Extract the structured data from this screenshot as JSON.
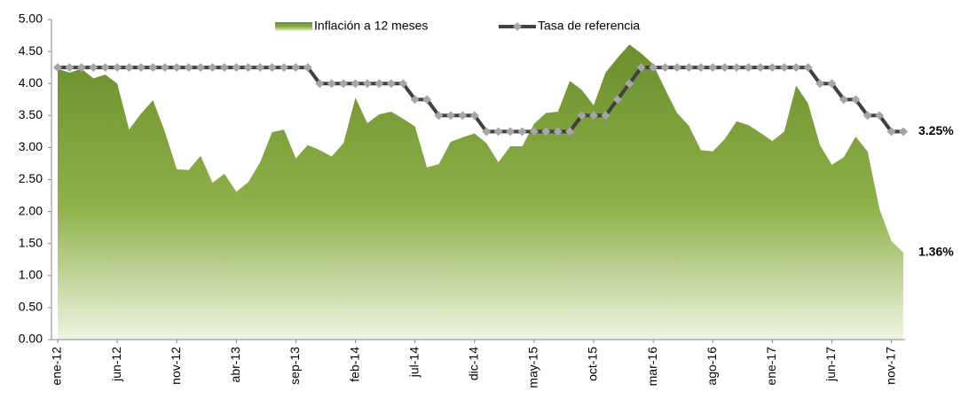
{
  "chart_data": {
    "type": "area-line",
    "categories": [
      "ene-12",
      null,
      null,
      null,
      null,
      "jun-12",
      null,
      null,
      null,
      null,
      "nov-12",
      null,
      null,
      null,
      null,
      "abr-13",
      null,
      null,
      null,
      null,
      "sep-13",
      null,
      null,
      null,
      null,
      "feb-14",
      null,
      null,
      null,
      null,
      "jul-14",
      null,
      null,
      null,
      null,
      "dic-14",
      null,
      null,
      null,
      null,
      "may-15",
      null,
      null,
      null,
      null,
      "oct-15",
      null,
      null,
      null,
      null,
      "mar-16",
      null,
      null,
      null,
      null,
      "ago-16",
      null,
      null,
      null,
      null,
      "ene-17",
      null,
      null,
      null,
      null,
      "jun-17",
      null,
      null,
      null,
      null,
      "nov-17",
      null
    ],
    "series": [
      {
        "name": "Inflación a 12 meses",
        "color": "#7a9e3a",
        "kind": "area",
        "values": [
          4.23,
          4.17,
          4.23,
          4.08,
          4.14,
          4.0,
          3.28,
          3.53,
          3.74,
          3.25,
          2.66,
          2.65,
          2.87,
          2.45,
          2.59,
          2.31,
          2.46,
          2.77,
          3.24,
          3.28,
          2.83,
          3.04,
          2.96,
          2.86,
          3.07,
          3.78,
          3.38,
          3.52,
          3.56,
          3.45,
          3.33,
          2.69,
          2.74,
          3.09,
          3.16,
          3.22,
          3.07,
          2.77,
          3.02,
          3.02,
          3.37,
          3.54,
          3.56,
          4.04,
          3.9,
          3.66,
          4.17,
          4.4,
          4.61,
          4.47,
          4.3,
          3.91,
          3.54,
          3.34,
          2.96,
          2.94,
          3.13,
          3.41,
          3.35,
          3.23,
          3.1,
          3.25,
          3.97,
          3.69,
          3.04,
          2.73,
          2.85,
          3.17,
          2.94,
          2.04,
          1.54,
          1.36
        ],
        "value_labels": [
          null,
          null,
          null,
          null,
          null,
          null,
          null,
          null,
          null,
          null,
          null,
          null,
          null,
          null,
          null,
          null,
          null,
          null,
          null,
          null,
          null,
          null,
          null,
          null,
          null,
          null,
          null,
          null,
          null,
          null,
          null,
          null,
          null,
          null,
          null,
          null,
          null,
          null,
          null,
          null,
          null,
          null,
          null,
          null,
          null,
          null,
          null,
          null,
          null,
          null,
          null,
          null,
          null,
          null,
          null,
          null,
          null,
          null,
          null,
          null,
          null,
          null,
          null,
          null,
          null,
          null,
          null,
          null,
          null,
          null,
          null,
          "1.36%"
        ],
        "label_color": "#9bbb59"
      },
      {
        "name": "Tasa de referencia",
        "color": "#404040",
        "marker_color": "#a6a6a6",
        "kind": "line",
        "values": [
          4.25,
          4.25,
          4.25,
          4.25,
          4.25,
          4.25,
          4.25,
          4.25,
          4.25,
          4.25,
          4.25,
          4.25,
          4.25,
          4.25,
          4.25,
          4.25,
          4.25,
          4.25,
          4.25,
          4.25,
          4.25,
          4.25,
          4.0,
          4.0,
          4.0,
          4.0,
          4.0,
          4.0,
          4.0,
          4.0,
          3.75,
          3.75,
          3.5,
          3.5,
          3.5,
          3.5,
          3.25,
          3.25,
          3.25,
          3.25,
          3.25,
          3.25,
          3.25,
          3.25,
          3.5,
          3.5,
          3.5,
          3.75,
          4.0,
          4.25,
          4.25,
          4.25,
          4.25,
          4.25,
          4.25,
          4.25,
          4.25,
          4.25,
          4.25,
          4.25,
          4.25,
          4.25,
          4.25,
          4.25,
          4.0,
          4.0,
          3.75,
          3.75,
          3.5,
          3.5,
          3.25,
          3.25
        ],
        "value_labels": [
          null,
          null,
          null,
          null,
          null,
          null,
          null,
          null,
          null,
          null,
          null,
          null,
          null,
          null,
          null,
          null,
          null,
          null,
          null,
          null,
          null,
          null,
          null,
          null,
          null,
          null,
          null,
          null,
          null,
          null,
          null,
          null,
          null,
          null,
          null,
          null,
          null,
          null,
          null,
          null,
          null,
          null,
          null,
          null,
          null,
          null,
          null,
          null,
          null,
          null,
          null,
          null,
          null,
          null,
          null,
          null,
          null,
          null,
          null,
          null,
          null,
          null,
          null,
          null,
          null,
          null,
          null,
          null,
          null,
          null,
          null,
          "3.25%"
        ],
        "label_color": "#404040"
      }
    ],
    "ylim": [
      0,
      5
    ],
    "yticks": [
      {
        "value": 0,
        "label": "0.00"
      },
      {
        "value": 0.5,
        "label": "0.50"
      },
      {
        "value": 1,
        "label": "1.00"
      },
      {
        "value": 1.5,
        "label": "1.50"
      },
      {
        "value": 2,
        "label": "2.00"
      },
      {
        "value": 2.5,
        "label": "2.50"
      },
      {
        "value": 3,
        "label": "3.00"
      },
      {
        "value": 3.5,
        "label": "3.50"
      },
      {
        "value": 4,
        "label": "4.00"
      },
      {
        "value": 4.5,
        "label": "4.50"
      },
      {
        "value": 5,
        "label": "5.00"
      }
    ],
    "legend": "top"
  }
}
